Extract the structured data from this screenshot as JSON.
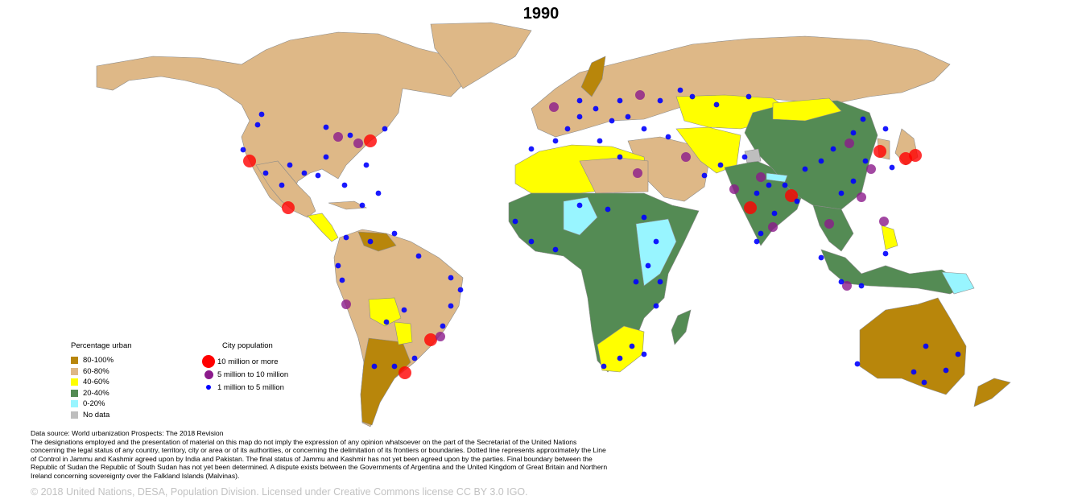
{
  "title": "1990",
  "colors": {
    "pct_80_100": "#b8860b",
    "pct_60_80": "#deb887",
    "pct_40_60": "#ffff00",
    "pct_20_40": "#548b54",
    "pct_0_20": "#98f5ff",
    "no_data": "#bebebe",
    "city_large": "#ff0000",
    "city_medium": "#8b1a8b",
    "city_small": "#0000ff"
  },
  "legend_urban": {
    "title": "Percentage urban",
    "items": [
      {
        "label": "80-100%",
        "color_key": "pct_80_100"
      },
      {
        "label": "60-80%",
        "color_key": "pct_60_80"
      },
      {
        "label": "40-60%",
        "color_key": "pct_40_60"
      },
      {
        "label": "20-40%",
        "color_key": "pct_20_40"
      },
      {
        "label": "0-20%",
        "color_key": "pct_0_20"
      },
      {
        "label": "No data",
        "color_key": "no_data"
      }
    ]
  },
  "legend_city": {
    "title": "City population",
    "items": [
      {
        "label": "10 million or more",
        "color_key": "city_large"
      },
      {
        "label": "5 million to 10 million",
        "color_key": "city_medium"
      },
      {
        "label": "1 million to 5 million",
        "color_key": "city_small"
      }
    ]
  },
  "notes": {
    "source": "Data source: World urbanization Prospects: The 2018 Revision",
    "disclaimer": "The designations employed and the presentation of material on this map do not imply the expression of any opinion whatsoever on the part of the Secretariat of the United Nations concerning the legal status of any country, territory, city or area or of its authorities, or concerning the delimitation of its frontiers or boundaries. Dotted line represents approximately the Line of Control in Jammu and Kashmir agreed upon by India and Pakistan. The final status of Jammu and Kashmir has not yet been agreed upon by the parties. Final boundary between the Republic of Sudan the Republic of South Sudan has not yet been determined. A dispute exists between the Governments of Argentina and the United Kingdom of Great Britain and Northern Ireland concerning sovereignty over the Falkland Islands (Malvinas)."
  },
  "copyright": "© 2018 United Nations, DESA, Population Division. Licensed under Creative Commons license CC BY 3.0 IGO."
}
